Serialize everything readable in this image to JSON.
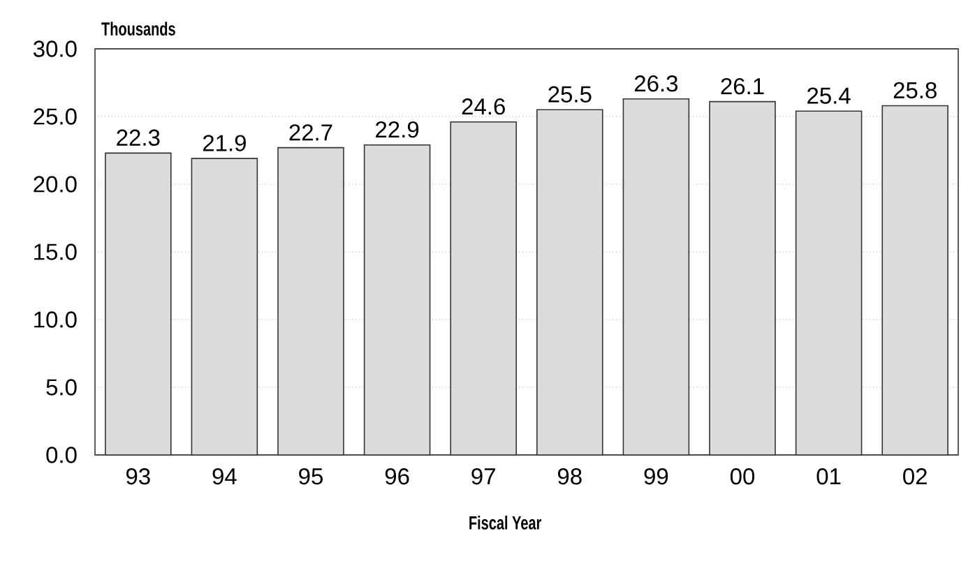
{
  "chart_data": {
    "type": "bar",
    "xlabel": "Fiscal Year",
    "ylabel": "Thousands",
    "categories": [
      "93",
      "94",
      "95",
      "96",
      "97",
      "98",
      "99",
      "00",
      "01",
      "02"
    ],
    "values": [
      22.3,
      21.9,
      22.7,
      22.9,
      24.6,
      25.5,
      26.3,
      26.1,
      25.4,
      25.8
    ],
    "color": "#dcdcdc",
    "ylim": [
      0,
      30
    ],
    "yticks": [
      {
        "value": 0,
        "label": "0.0"
      },
      {
        "value": 5,
        "label": "5.0"
      },
      {
        "value": 10,
        "label": "10.0"
      },
      {
        "value": 15,
        "label": "15.0"
      },
      {
        "value": 20,
        "label": "20.0"
      },
      {
        "value": 25,
        "label": "25.0"
      },
      {
        "value": 30,
        "label": "30.0"
      }
    ],
    "grid": "y",
    "data_labels": true
  }
}
